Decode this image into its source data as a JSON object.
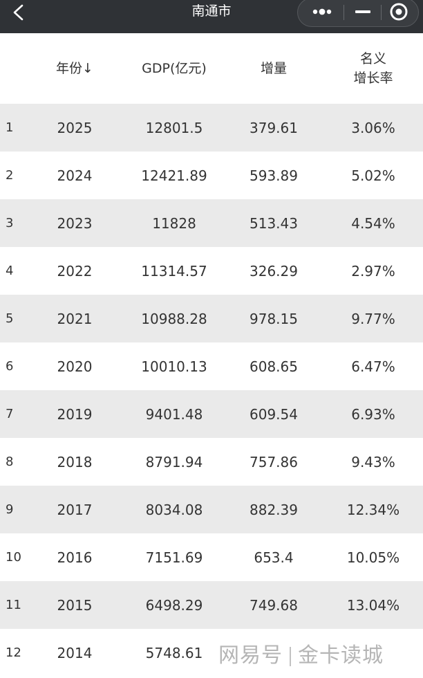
{
  "titlebar": {
    "title": "南通市"
  },
  "table": {
    "headers": {
      "year": "年份↓",
      "gdp": "GDP(亿元)",
      "increase": "增量",
      "rate_line1": "名义",
      "rate_line2": "增长率"
    },
    "rows": [
      {
        "index": "1",
        "year": "2025",
        "gdp": "12801.5",
        "increase": "379.61",
        "rate": "3.06%"
      },
      {
        "index": "2",
        "year": "2024",
        "gdp": "12421.89",
        "increase": "593.89",
        "rate": "5.02%"
      },
      {
        "index": "3",
        "year": "2023",
        "gdp": "11828",
        "increase": "513.43",
        "rate": "4.54%"
      },
      {
        "index": "4",
        "year": "2022",
        "gdp": "11314.57",
        "increase": "326.29",
        "rate": "2.97%"
      },
      {
        "index": "5",
        "year": "2021",
        "gdp": "10988.28",
        "increase": "978.15",
        "rate": "9.77%"
      },
      {
        "index": "6",
        "year": "2020",
        "gdp": "10010.13",
        "increase": "608.65",
        "rate": "6.47%"
      },
      {
        "index": "7",
        "year": "2019",
        "gdp": "9401.48",
        "increase": "609.54",
        "rate": "6.93%"
      },
      {
        "index": "8",
        "year": "2018",
        "gdp": "8791.94",
        "increase": "757.86",
        "rate": "9.43%"
      },
      {
        "index": "9",
        "year": "2017",
        "gdp": "8034.08",
        "increase": "882.39",
        "rate": "12.34%"
      },
      {
        "index": "10",
        "year": "2016",
        "gdp": "7151.69",
        "increase": "653.4",
        "rate": "10.05%"
      },
      {
        "index": "11",
        "year": "2015",
        "gdp": "6498.29",
        "increase": "749.68",
        "rate": "13.04%"
      },
      {
        "index": "12",
        "year": "2014",
        "gdp": "5748.61",
        "increase": "",
        "rate": ""
      }
    ]
  },
  "watermark": {
    "left": "网易号",
    "right": "金卡读城"
  },
  "icons": {
    "back": "chevron-left-icon",
    "more": "more-dots-icon",
    "minimize": "minus-icon",
    "close": "target-close-icon"
  },
  "colors": {
    "topbar": "#2f3236",
    "row_alt": "#eaeaea",
    "text": "#333333"
  }
}
